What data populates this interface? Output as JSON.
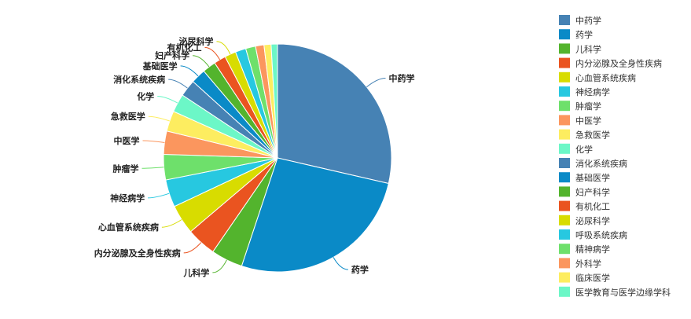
{
  "chart_data": {
    "type": "pie",
    "legend_position": "right",
    "series": [
      {
        "name": "中药学",
        "value": 28.6,
        "color": "#4682b4"
      },
      {
        "name": "药学",
        "value": 26.5,
        "color": "#0a8ac7"
      },
      {
        "name": "儿科学",
        "value": 4.5,
        "color": "#53b42d"
      },
      {
        "name": "内分泌腺及全身性疾病",
        "value": 4.2,
        "color": "#ea5420"
      },
      {
        "name": "心血管系统疾病",
        "value": 4.2,
        "color": "#d8dc00"
      },
      {
        "name": "神经病学",
        "value": 3.9,
        "color": "#27c8e0"
      },
      {
        "name": "肿瘤学",
        "value": 3.6,
        "color": "#6ee06b"
      },
      {
        "name": "中医学",
        "value": 3.3,
        "color": "#fb965e"
      },
      {
        "name": "急救医学",
        "value": 2.9,
        "color": "#fded60"
      },
      {
        "name": "化学",
        "value": 2.6,
        "color": "#6cf7c7"
      },
      {
        "name": "消化系统疾病",
        "value": 2.4,
        "color": "#4682b4"
      },
      {
        "name": "基础医学",
        "value": 2.1,
        "color": "#0a8ac7"
      },
      {
        "name": "妇产科学",
        "value": 1.9,
        "color": "#53b42d"
      },
      {
        "name": "有机化工",
        "value": 1.7,
        "color": "#ea5420"
      },
      {
        "name": "泌尿科学",
        "value": 1.6,
        "color": "#d8dc00"
      },
      {
        "name": "呼吸系统疾病",
        "value": 1.5,
        "color": "#27c8e0"
      },
      {
        "name": "精神病学",
        "value": 1.4,
        "color": "#6ee06b"
      },
      {
        "name": "外科学",
        "value": 1.2,
        "color": "#fb965e"
      },
      {
        "name": "临床医学",
        "value": 1.0,
        "color": "#fded60"
      },
      {
        "name": "医学教育与医学边缘学科",
        "value": 0.9,
        "color": "#6cf7c7"
      }
    ],
    "visible_slice_labels": [
      "中药学",
      "药学",
      "儿科学",
      "内分泌腺及全身性疾病",
      "心血管系统疾病",
      "神经病学",
      "肿瘤学",
      "中医学",
      "急救医学",
      "化学",
      "消化系统疾病",
      "基础医学",
      "妇产科学",
      "有机化工",
      "泌尿科学"
    ]
  }
}
